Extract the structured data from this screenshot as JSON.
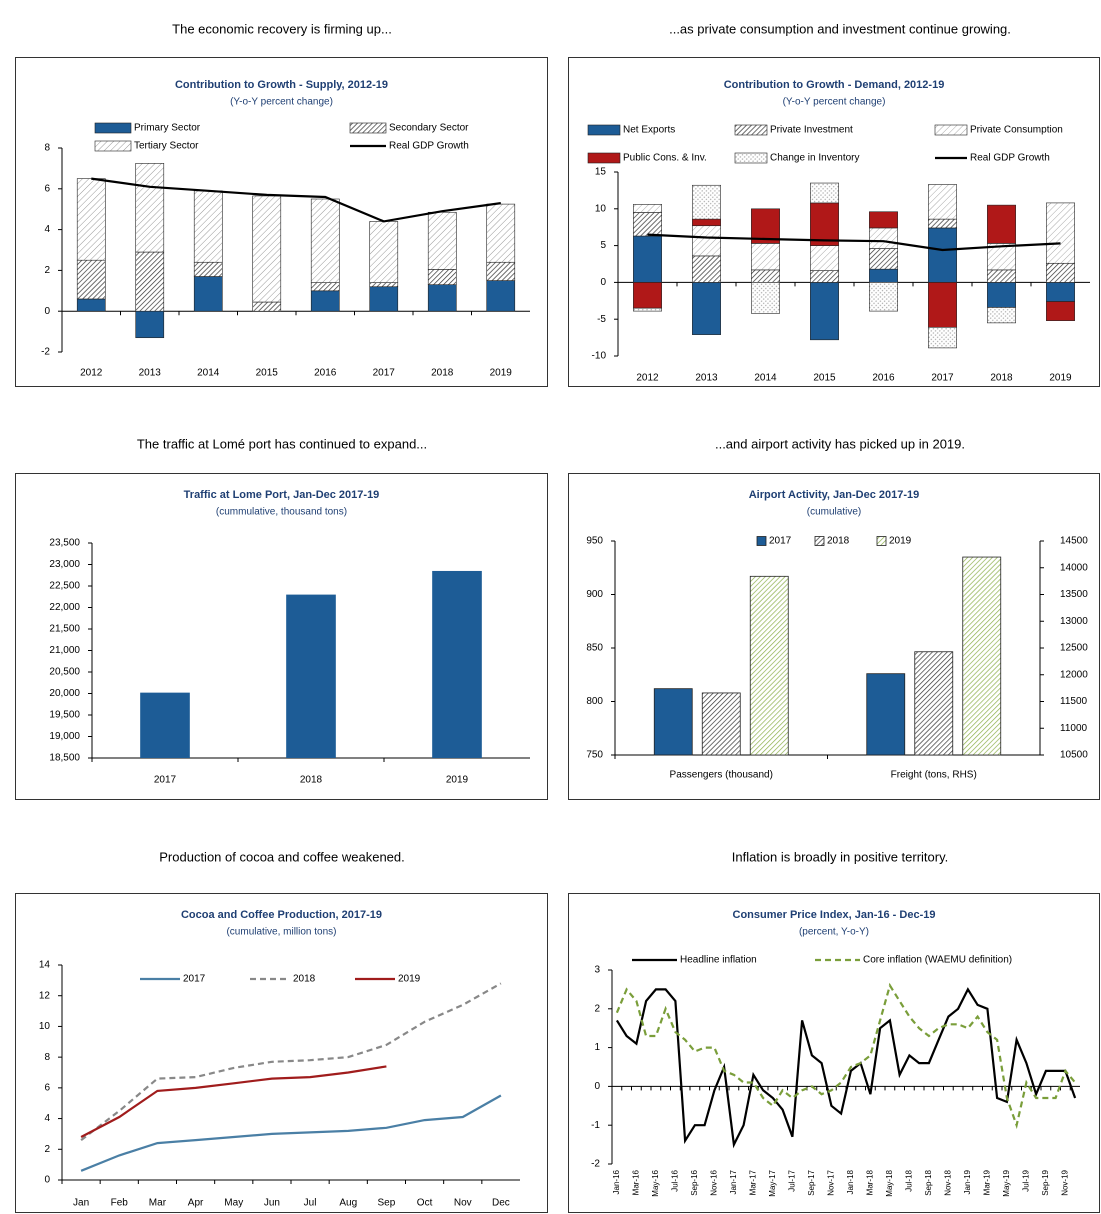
{
  "chart_data": [
    {
      "type": "stacked_bar",
      "caption": "The economic recovery is firming up...",
      "title": "Contribution to Growth - Supply, 2012-19",
      "subtitle": "(Y-o-Y percent change)",
      "categories": [
        "2012",
        "2013",
        "2014",
        "2015",
        "2016",
        "2017",
        "2018",
        "2019"
      ],
      "series": [
        {
          "name": "Primary Sector",
          "color": "#1d5c96",
          "pattern": "solid",
          "values": [
            0.6,
            -1.3,
            1.7,
            0,
            1.0,
            1.2,
            1.3,
            1.5
          ]
        },
        {
          "name": "Secondary Sector",
          "color": "#333333",
          "pattern": "hatch",
          "values": [
            1.9,
            2.9,
            0.7,
            0.45,
            0.4,
            0.2,
            0.75,
            0.9
          ]
        },
        {
          "name": "Tertiary Sector",
          "color": "#999999",
          "pattern": "light-hatch",
          "values": [
            4.0,
            4.35,
            3.5,
            5.2,
            4.1,
            3.0,
            2.8,
            2.85
          ]
        },
        {
          "name": "Real GDP Growth",
          "color": "#000000",
          "type": "line",
          "values": [
            6.5,
            6.1,
            5.9,
            5.7,
            5.6,
            4.4,
            4.9,
            5.3
          ]
        }
      ],
      "ylim": [
        -2,
        8
      ],
      "yticks": [
        -2,
        0,
        2,
        4,
        6,
        8
      ],
      "grid": false
    },
    {
      "type": "stacked_bar",
      "caption": "...as private consumption and investment continue growing.",
      "title": "Contribution to Growth - Demand, 2012-19",
      "subtitle": "(Y-o-Y percent change)",
      "categories": [
        "2012",
        "2013",
        "2014",
        "2015",
        "2016",
        "2017",
        "2018",
        "2019"
      ],
      "series": [
        {
          "name": "Net Exports",
          "color": "#1d5c96",
          "pattern": "solid",
          "values": [
            6.3,
            -7.1,
            0,
            -7.8,
            1.8,
            7.4,
            -3.4,
            -2.6
          ]
        },
        {
          "name": "Private Investment",
          "color": "#333333",
          "pattern": "hatch",
          "values": [
            3.2,
            3.6,
            1.7,
            1.6,
            2.8,
            1.2,
            1.7,
            2.6
          ]
        },
        {
          "name": "Private Consumption",
          "color": "#aaaaaa",
          "pattern": "light-hatch",
          "values": [
            1.1,
            4.1,
            3.6,
            3.4,
            2.8,
            4.7,
            3.6,
            8.2
          ]
        },
        {
          "name": "Public Cons. & Inv.",
          "color": "#b01818",
          "pattern": "solid",
          "values": [
            -3.5,
            0.9,
            4.7,
            5.8,
            2.2,
            -6.1,
            5.2,
            -2.6
          ]
        },
        {
          "name": "Change in Inventory",
          "color": "#aaaaaa",
          "pattern": "dots",
          "values": [
            -0.4,
            4.6,
            -4.2,
            2.7,
            -3.9,
            -2.8,
            -2.1,
            0
          ]
        },
        {
          "name": "Real GDP Growth",
          "color": "#000000",
          "type": "line",
          "values": [
            6.5,
            6.1,
            5.9,
            5.7,
            5.6,
            4.4,
            4.9,
            5.3
          ]
        }
      ],
      "ylim": [
        -10,
        15
      ],
      "yticks": [
        -10,
        -5,
        0,
        5,
        10,
        15
      ],
      "grid": false
    },
    {
      "type": "bar",
      "caption": "The traffic at Lomé port has continued to expand...",
      "title": "Traffic at Lome Port, Jan-Dec 2017-19",
      "subtitle": "(cummulative, thousand tons)",
      "categories": [
        "2017",
        "2018",
        "2019"
      ],
      "values": [
        20020,
        22300,
        22850
      ],
      "color": "#1d5c96",
      "ylim": [
        18500,
        23500
      ],
      "yticks": [
        {
          "value": 18500,
          "label": "18,500"
        },
        {
          "value": 19000,
          "label": "19,000"
        },
        {
          "value": 19500,
          "label": "19,500"
        },
        {
          "value": 20000,
          "label": "20,000"
        },
        {
          "value": 20500,
          "label": "20,500"
        },
        {
          "value": 21000,
          "label": "21,000"
        },
        {
          "value": 21500,
          "label": "21,500"
        },
        {
          "value": 22000,
          "label": "22,000"
        },
        {
          "value": 22500,
          "label": "22,500"
        },
        {
          "value": 23000,
          "label": "23,000"
        },
        {
          "value": 23500,
          "label": "23,500"
        }
      ],
      "grid": false
    },
    {
      "type": "grouped_bar",
      "caption": "...and airport activity has picked up in 2019.",
      "title": "Airport Activity, Jan-Dec 2017-19",
      "subtitle": "(cumulative)",
      "categories": [
        "Passengers (thousand)",
        "Freight (tons, RHS)"
      ],
      "category_axes": [
        "y",
        "y2"
      ],
      "series": [
        {
          "name": "2017",
          "color": "#1d5c96",
          "pattern": "solid",
          "values": [
            812,
            12020
          ]
        },
        {
          "name": "2018",
          "color": "#333333",
          "pattern": "hatch",
          "values": [
            808,
            12430
          ]
        },
        {
          "name": "2019",
          "color": "#8db04c",
          "pattern": "hatch",
          "values": [
            917,
            14200
          ]
        }
      ],
      "ylim": [
        750,
        950
      ],
      "yticks": [
        750,
        800,
        850,
        900,
        950
      ],
      "y2lim": [
        10500,
        14500
      ],
      "y2ticks": [
        10500,
        11000,
        11500,
        12000,
        12500,
        13000,
        13500,
        14000,
        14500
      ],
      "grid": false
    },
    {
      "type": "line",
      "caption": "Production of cocoa and coffee weakened.",
      "title": "Cocoa and Coffee Production, 2017-19",
      "subtitle": "(cumulative, million tons)",
      "categories": [
        "Jan",
        "Feb",
        "Mar",
        "Apr",
        "May",
        "Jun",
        "Jul",
        "Aug",
        "Sep",
        "Oct",
        "Nov",
        "Dec"
      ],
      "series": [
        {
          "name": "2017",
          "color": "#4a7fa5",
          "dash": false,
          "values": [
            0.6,
            1.6,
            2.4,
            2.6,
            2.8,
            3.0,
            3.1,
            3.2,
            3.4,
            3.9,
            4.1,
            5.5
          ]
        },
        {
          "name": "2018",
          "color": "#888888",
          "dash": true,
          "values": [
            2.6,
            4.5,
            6.6,
            6.7,
            7.3,
            7.7,
            7.8,
            8.0,
            8.8,
            10.3,
            11.4,
            12.8
          ]
        },
        {
          "name": "2019",
          "color": "#a01c1c",
          "dash": false,
          "values": [
            2.8,
            4.1,
            5.8,
            6.0,
            6.3,
            6.6,
            6.7,
            7.0,
            7.4,
            null,
            null,
            null
          ]
        }
      ],
      "ylim": [
        0,
        14
      ],
      "yticks": [
        0,
        2,
        4,
        6,
        8,
        10,
        12,
        14
      ],
      "grid": false
    },
    {
      "type": "line",
      "caption": "Inflation is broadly in positive territory.",
      "title": "Consumer Price Index, Jan-16 - Dec-19",
      "subtitle": "(percent, Y-o-Y)",
      "categories": [
        "Jan-16",
        null,
        "Mar-16",
        null,
        "May-16",
        null,
        "Jul-16",
        null,
        "Sep-16",
        null,
        "Nov-16",
        null,
        "Jan-17",
        null,
        "Mar-17",
        null,
        "May-17",
        null,
        "Jul-17",
        null,
        "Sep-17",
        null,
        "Nov-17",
        null,
        "Jan-18",
        null,
        "Mar-18",
        null,
        "May-18",
        null,
        "Jul-18",
        null,
        "Sep-18",
        null,
        "Nov-18",
        null,
        "Jan-19",
        null,
        "Mar-19",
        null,
        "May-19",
        null,
        "Jul-19",
        null,
        "Sep-19",
        null,
        "Nov-19",
        null
      ],
      "series": [
        {
          "name": "Headline inflation",
          "color": "#000000",
          "dash": false,
          "values": [
            1.7,
            1.3,
            1.1,
            2.2,
            2.5,
            2.5,
            2.2,
            -1.4,
            -1.0,
            -1.0,
            -0.1,
            0.5,
            -1.5,
            -1.0,
            0.3,
            -0.1,
            -0.3,
            -0.6,
            -1.3,
            1.7,
            0.8,
            0.6,
            -0.5,
            -0.7,
            0.4,
            0.6,
            -0.2,
            1.5,
            1.7,
            0.3,
            0.8,
            0.6,
            0.6,
            1.2,
            1.8,
            2.0,
            2.5,
            2.1,
            2.0,
            -0.3,
            -0.4,
            1.2,
            0.6,
            -0.2,
            0.4,
            0.4,
            0.4,
            -0.3
          ]
        },
        {
          "name": "Core inflation (WAEMU definition)",
          "color": "#7a9e3a",
          "dash": true,
          "values": [
            1.9,
            2.5,
            2.2,
            1.3,
            1.3,
            2.0,
            1.4,
            1.2,
            0.9,
            1.0,
            1.0,
            0.4,
            0.3,
            0.1,
            0.1,
            -0.3,
            -0.5,
            -0.1,
            -0.3,
            -0.1,
            0.0,
            -0.2,
            -0.1,
            0.1,
            0.5,
            0.6,
            0.8,
            1.7,
            2.6,
            2.2,
            1.8,
            1.5,
            1.3,
            1.5,
            1.6,
            1.6,
            1.5,
            1.8,
            1.4,
            1.2,
            -0.3,
            -1.0,
            0.1,
            -0.3,
            -0.3,
            -0.3,
            0.4,
            0.1
          ]
        }
      ],
      "ylim": [
        -2,
        3
      ],
      "yticks": [
        -2,
        -1,
        0,
        1,
        2,
        3
      ],
      "grid": false
    }
  ]
}
